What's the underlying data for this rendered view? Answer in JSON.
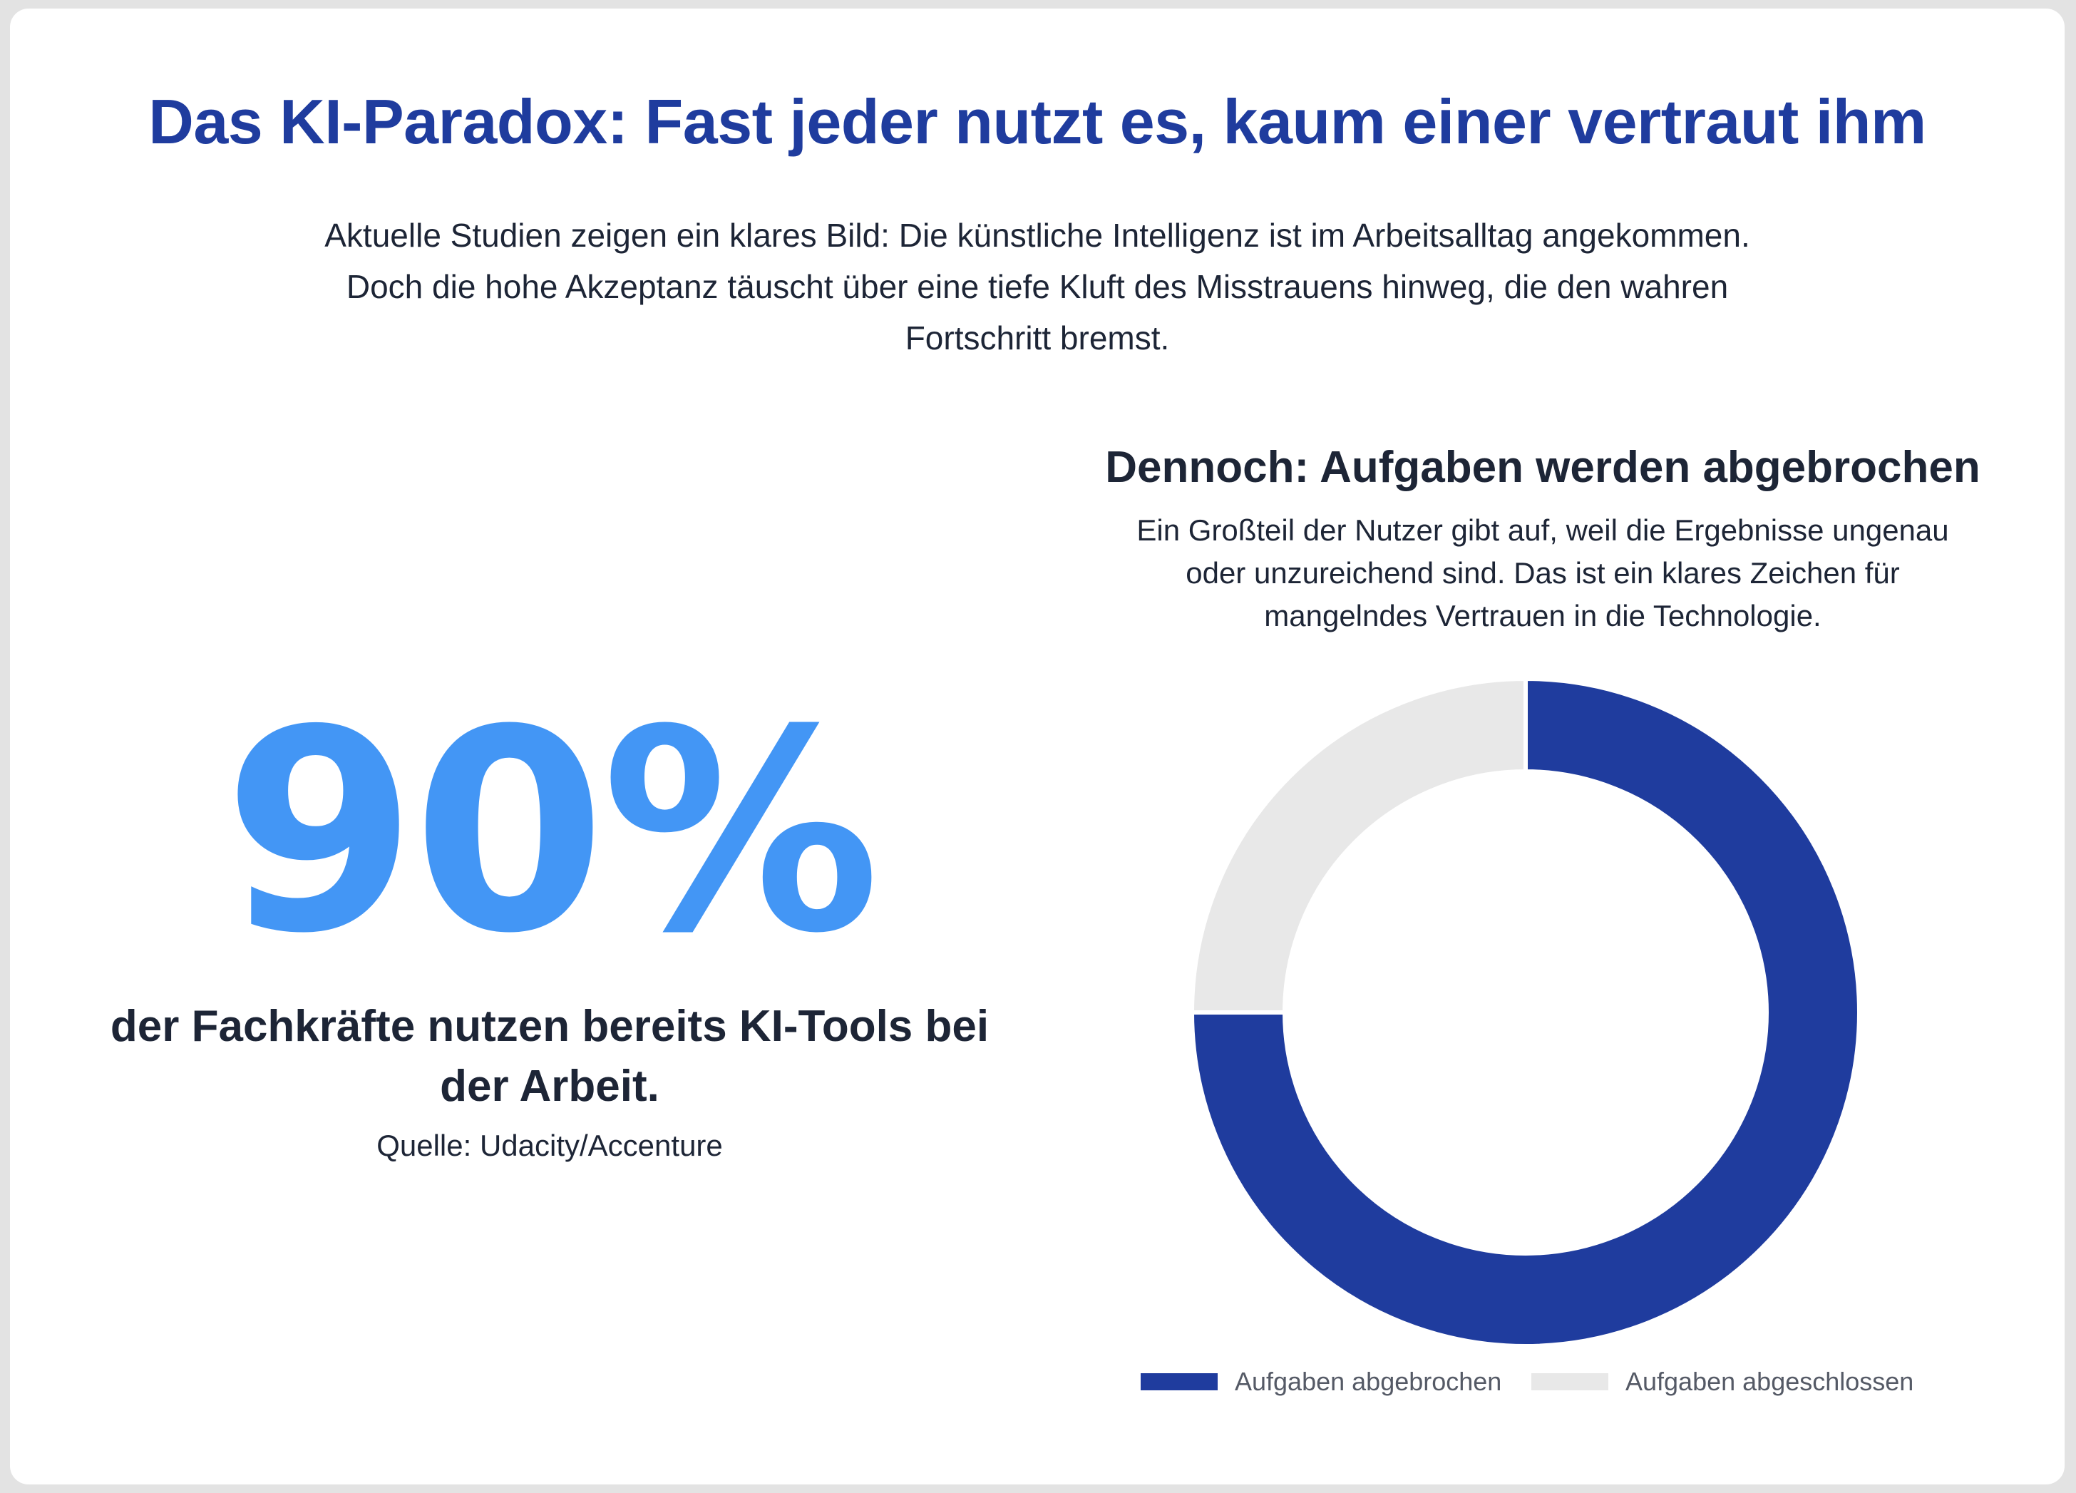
{
  "header": {
    "title": "Das KI-Paradox: Fast jeder nutzt es, kaum einer vertraut ihm",
    "intro_line1": "Aktuelle Studien zeigen ein klares Bild: Die künstliche Intelligenz ist im Arbeitsalltag angekommen.",
    "intro_line2": "Doch die hohe Akzeptanz täuscht über eine tiefe Kluft des Misstrauens hinweg, die den wahren",
    "intro_line3": "Fortschritt bremst."
  },
  "stat": {
    "value": "90%",
    "description_line1": "der Fachkräfte nutzen bereits KI-Tools bei",
    "description_line2": "der Arbeit.",
    "source": "Quelle: Udacity/Accenture"
  },
  "chart_panel": {
    "title": "Dennoch: Aufgaben werden abgebrochen",
    "subtitle_line1": "Ein Großteil der Nutzer gibt auf, weil die Ergebnisse ungenau",
    "subtitle_line2": "oder unzureichend sind. Das ist ein klares Zeichen für",
    "subtitle_line3": "mangelndes Vertrauen in die Technologie."
  },
  "colors": {
    "title": "#1f3c9e",
    "big_number": "#4396f5",
    "text": "#1d2536",
    "abgebrochen": "#1f3c9e",
    "abgeschlossen": "#e8e8e8"
  },
  "chart_data": {
    "type": "pie",
    "variant": "donut",
    "title": "Dennoch: Aufgaben werden abgebrochen",
    "legend_position": "bottom",
    "slices": [
      {
        "label": "Aufgaben abgebrochen",
        "value": 75,
        "color": "#1f3c9e"
      },
      {
        "label": "Aufgaben abgeschlossen",
        "value": 25,
        "color": "#e8e8e8"
      }
    ]
  }
}
